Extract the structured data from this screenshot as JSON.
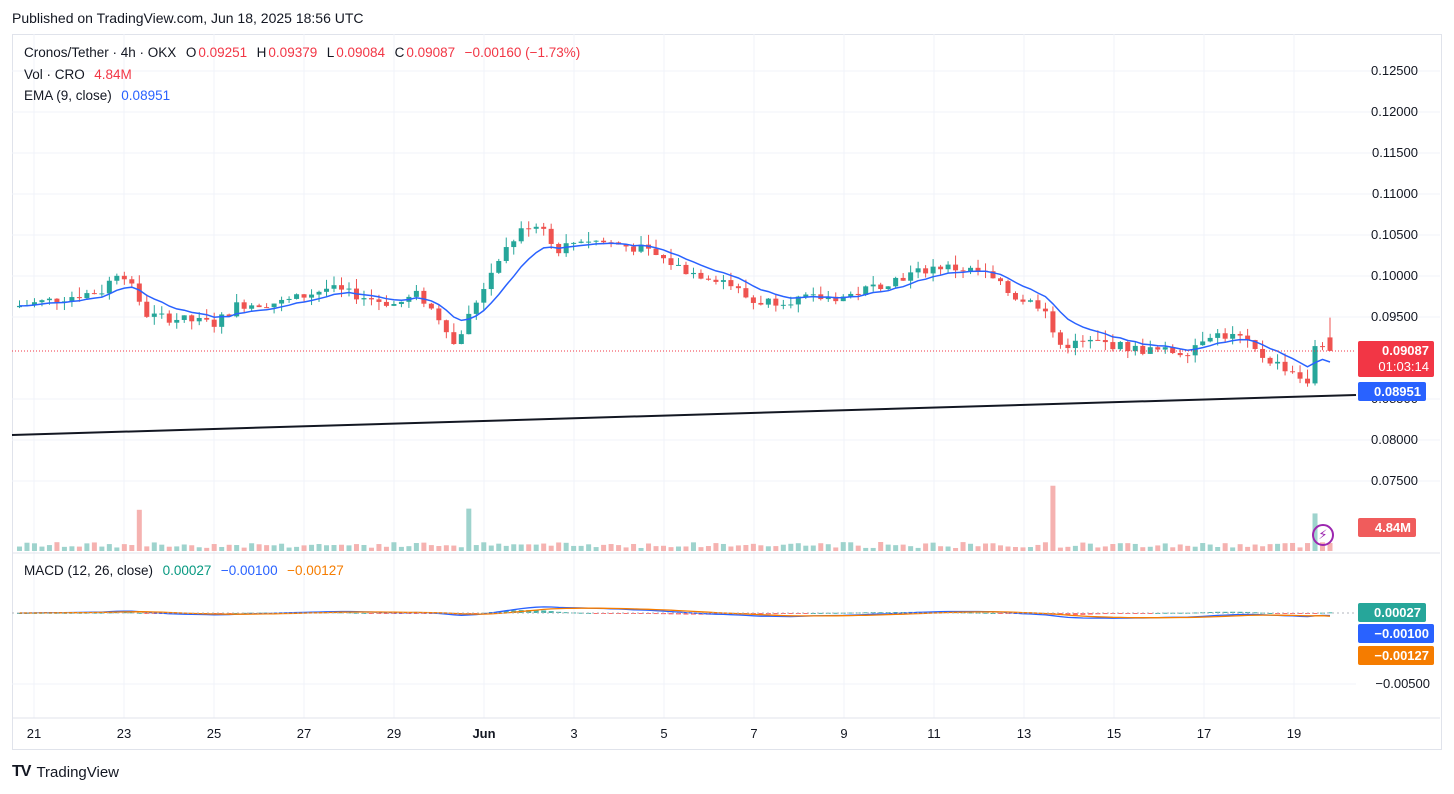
{
  "header": {
    "published": "Published on TradingView.com, Jun 18, 2025 18:56 UTC"
  },
  "legend": {
    "symbol": "Cronos/Tether · 4h · OKX",
    "o_label": "O",
    "o_value": "0.09251",
    "h_label": "H",
    "h_value": "0.09379",
    "l_label": "L",
    "l_value": "0.09084",
    "c_label": "C",
    "c_value": "0.09087",
    "change": "−0.00160 (−1.73%)",
    "vol_label": "Vol · CRO",
    "vol_value": "4.84M",
    "ema_label": "EMA (9, close)",
    "ema_value": "0.08951",
    "macd_label": "MACD (12, 26, close)",
    "macd_hist": "0.00027",
    "macd_line": "−0.00100",
    "macd_signal": "−0.00127"
  },
  "tags": {
    "price": "0.09087",
    "countdown": "01:03:14",
    "ema": "0.08951",
    "volume": "4.84M",
    "macd_hist": "0.00027",
    "macd_line": "−0.00100",
    "macd_signal": "−0.00127"
  },
  "colors": {
    "up": "#26a69a",
    "down": "#ef5350",
    "ema": "#2962ff",
    "macd": "#2962ff",
    "signal": "#f57c00",
    "trendline": "#131722"
  },
  "footer": {
    "brand": "TradingView"
  },
  "chart_data": {
    "type": "candlestick",
    "price_axis_ticks": [
      "0.12500",
      "0.12000",
      "0.11500",
      "0.11000",
      "0.10500",
      "0.10000",
      "0.09500",
      "0.08500",
      "0.08000",
      "0.07500"
    ],
    "macd_axis_ticks": [
      "−0.00500"
    ],
    "x_tick_labels": [
      "21",
      "23",
      "25",
      "27",
      "29",
      "Jun",
      "3",
      "5",
      "7",
      "9",
      "11",
      "13",
      "15",
      "17",
      "19"
    ],
    "price_ylim": [
      0.0735,
      0.1275
    ],
    "last": {
      "open": 0.09251,
      "high": 0.09379,
      "low": 0.09084,
      "close": 0.09087
    },
    "ema_9": 0.08951,
    "volume_last": "4.84M",
    "macd": {
      "histogram": 0.00027,
      "macd": -0.001,
      "signal": -0.00127
    },
    "close_path": [
      {
        "x": 0,
        "y": 0.0962
      },
      {
        "x": 2,
        "y": 0.0982
      },
      {
        "x": 2.4,
        "y": 0.101
      },
      {
        "x": 3,
        "y": 0.0952
      },
      {
        "x": 4.5,
        "y": 0.0942
      },
      {
        "x": 5,
        "y": 0.0965
      },
      {
        "x": 6,
        "y": 0.0968
      },
      {
        "x": 7,
        "y": 0.0985
      },
      {
        "x": 8.5,
        "y": 0.0965
      },
      {
        "x": 9,
        "y": 0.0978
      },
      {
        "x": 9.6,
        "y": 0.094
      },
      {
        "x": 9.8,
        "y": 0.0915
      },
      {
        "x": 10.2,
        "y": 0.096
      },
      {
        "x": 10.8,
        "y": 0.1025
      },
      {
        "x": 11.4,
        "y": 0.1062
      },
      {
        "x": 11.8,
        "y": 0.1062
      },
      {
        "x": 12.0,
        "y": 0.103
      },
      {
        "x": 12.6,
        "y": 0.1045
      },
      {
        "x": 13.3,
        "y": 0.104
      },
      {
        "x": 14,
        "y": 0.1032
      },
      {
        "x": 15,
        "y": 0.1005
      },
      {
        "x": 15.8,
        "y": 0.0995
      },
      {
        "x": 16.4,
        "y": 0.0968
      },
      {
        "x": 17.5,
        "y": 0.0972
      },
      {
        "x": 18.5,
        "y": 0.0975
      },
      {
        "x": 19.5,
        "y": 0.0995
      },
      {
        "x": 20.5,
        "y": 0.1012
      },
      {
        "x": 21.5,
        "y": 0.1005
      },
      {
        "x": 22.2,
        "y": 0.0975
      },
      {
        "x": 23.0,
        "y": 0.096
      },
      {
        "x": 23.1,
        "y": 0.0915
      },
      {
        "x": 24,
        "y": 0.092
      },
      {
        "x": 25,
        "y": 0.091
      },
      {
        "x": 26,
        "y": 0.0907
      },
      {
        "x": 26.5,
        "y": 0.093
      },
      {
        "x": 27.2,
        "y": 0.0925
      },
      {
        "x": 27.6,
        "y": 0.0905
      },
      {
        "x": 28.5,
        "y": 0.088
      },
      {
        "x": 28.7,
        "y": 0.0865
      },
      {
        "x": 28.9,
        "y": 0.0925
      },
      {
        "x": 29.1,
        "y": 0.0909
      }
    ]
  }
}
